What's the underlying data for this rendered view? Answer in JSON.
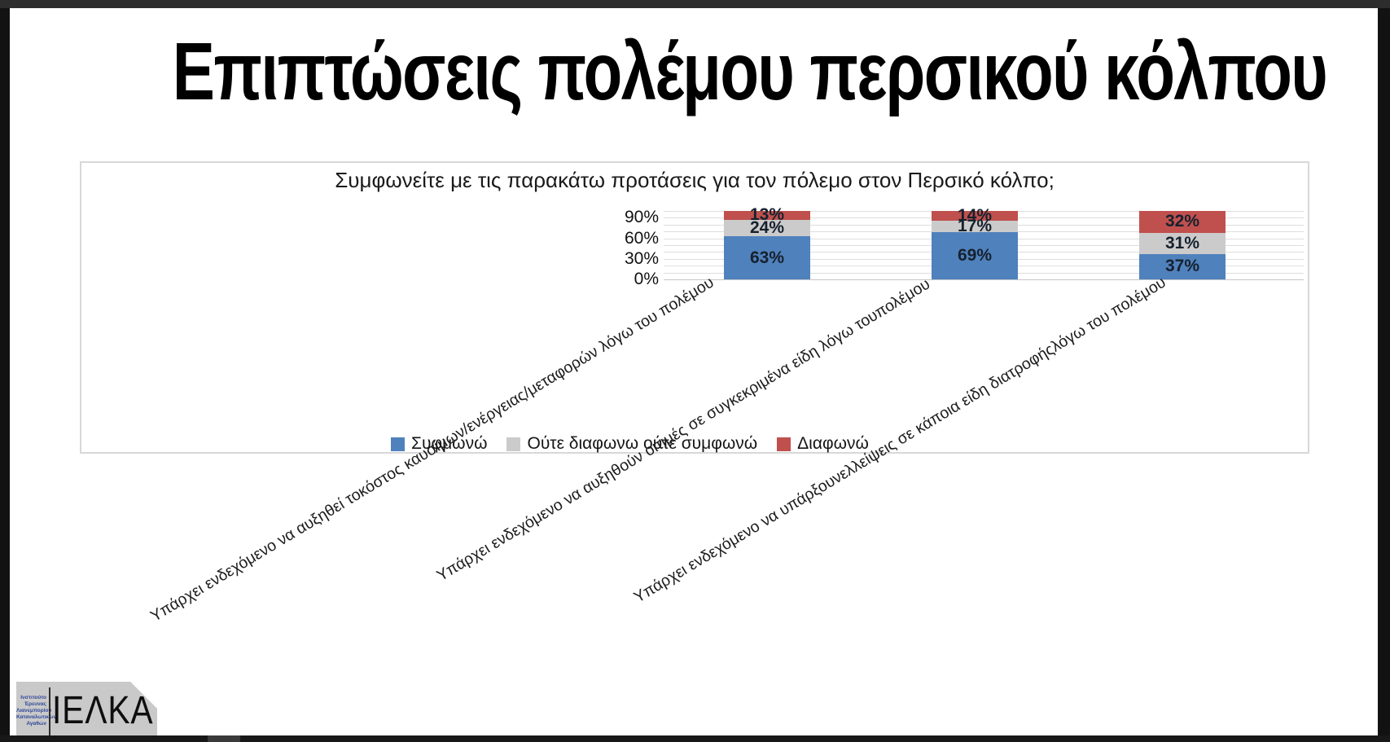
{
  "slide": {
    "title": "Επιπτώσεις πολέμου περσικού κόλπου"
  },
  "chart_data": {
    "type": "bar",
    "stacked": true,
    "orientation": "vertical",
    "title": "Συμφωνείτε με τις παρακάτω προτάσεις για τον πόλεμο στον Περσικό κόλπο;",
    "categories": [
      "Υπάρχει ενδεχόμενο να αυξηθεί τοκόστος καυσίμων/ενέργειας/μεταφορών λόγω του πολέμου",
      "Υπάρχει ενδεχόμενο να αυξηθούν οιτιμές σε συγκεκριμένα είδη λόγω τουπολέμου",
      "Υπάρχει ενδεχόμενο να υπάρξουνελλείψεις σε κάποια είδη διατροφήςλόγω του πολέμου"
    ],
    "series": [
      {
        "name": "Συφμωνώ",
        "color": "#4F81BD",
        "values": [
          63,
          69,
          37
        ]
      },
      {
        "name": "Ούτε διαφωνω ούτε συμφωνώ",
        "color": "#CBCBCB",
        "values": [
          24,
          17,
          31
        ]
      },
      {
        "name": "Διαφωνώ",
        "color": "#C0504D",
        "values": [
          13,
          14,
          32
        ]
      }
    ],
    "data_label_format": "{v}%",
    "ylim": [
      0,
      100
    ],
    "ytick_labels": [
      "0%",
      "30%",
      "60%",
      "90%"
    ],
    "grid": true,
    "grid_interval": 10,
    "legend_position": "bottom"
  },
  "logo": {
    "acronym": "ΙΕΛΚΑ",
    "org_lines": [
      "Ινστιτούτο",
      "Έρευνας",
      "Λιανεμπορίου",
      "Καταναλωτικών",
      "Αγαθών"
    ],
    "text_color": "#31489b"
  }
}
